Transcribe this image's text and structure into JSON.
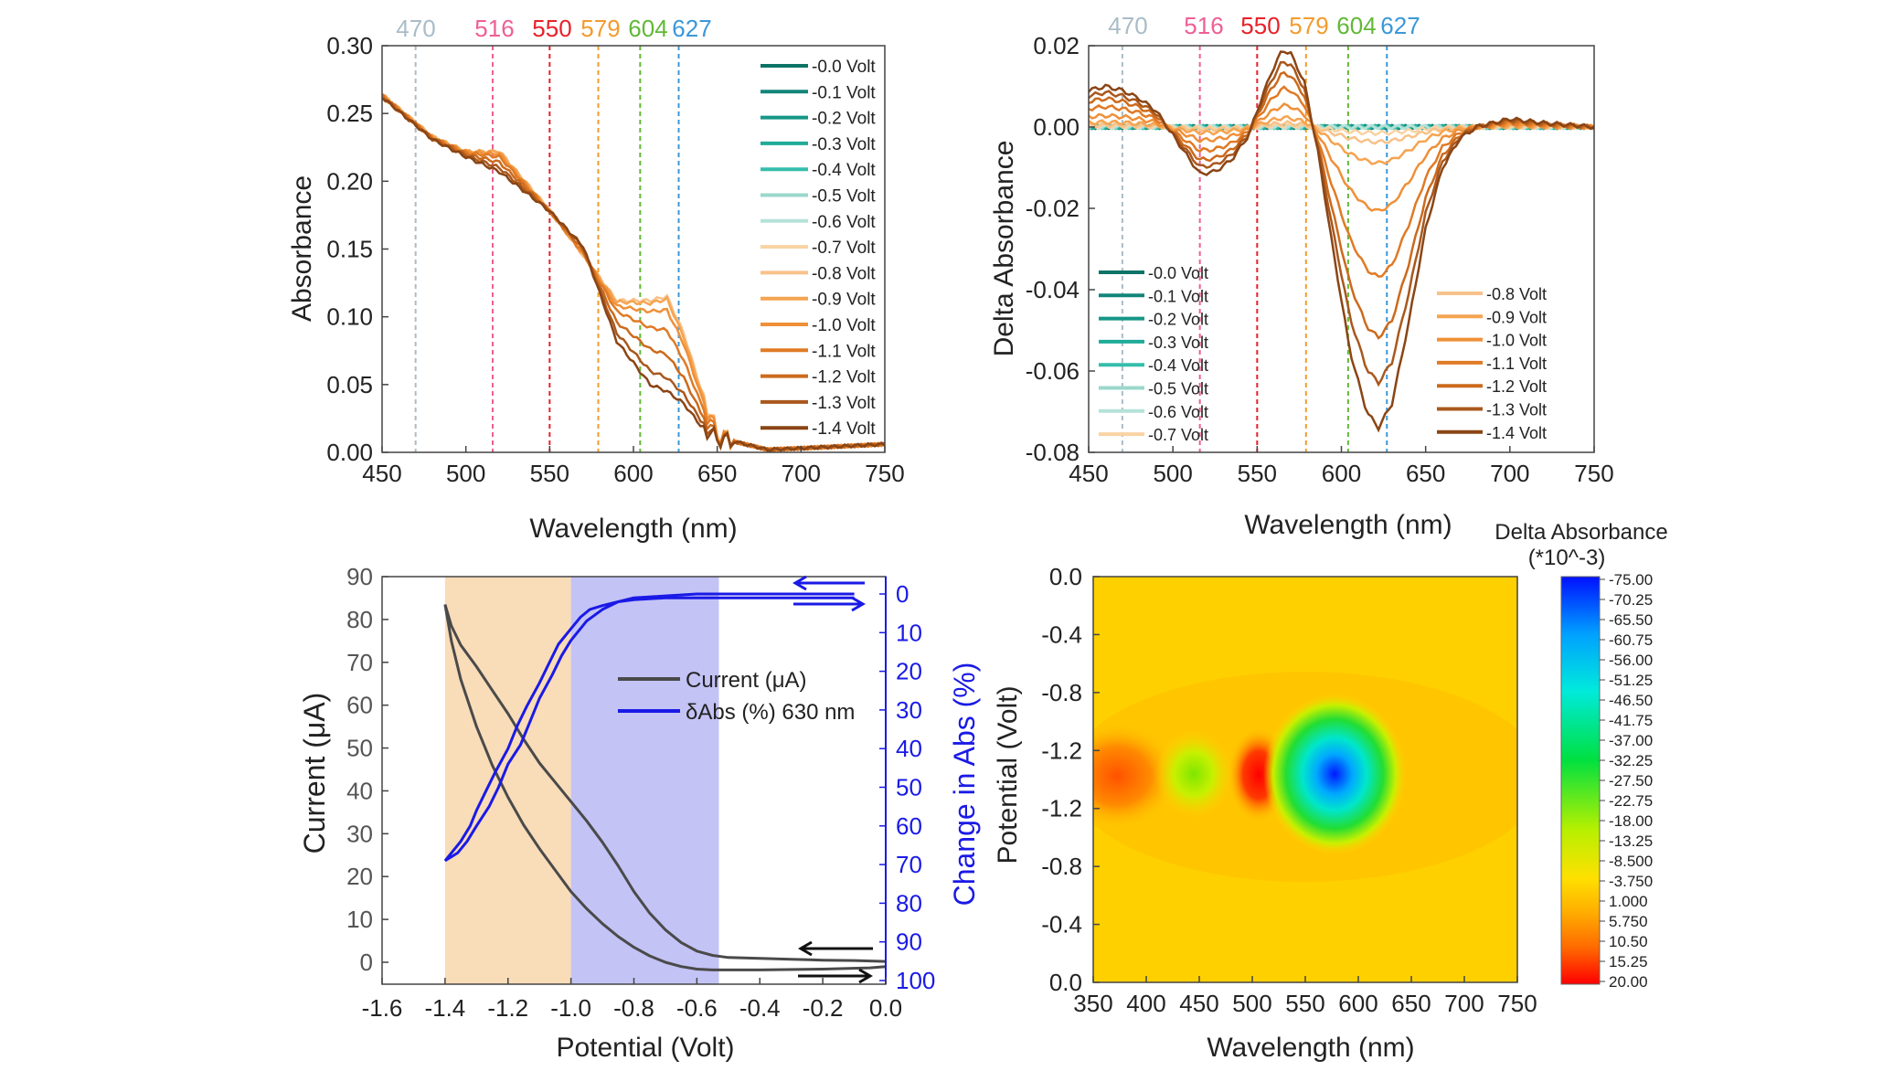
{
  "figure": {
    "panels": [
      "top-left",
      "top-right",
      "bottom-left",
      "bottom-right"
    ]
  },
  "chart_data": [
    {
      "id": "absorbance",
      "type": "line",
      "title": "",
      "xlabel": "Wavelength (nm)",
      "ylabel": "Absorbance",
      "xlim": [
        450,
        750
      ],
      "ylim": [
        0.0,
        0.3
      ],
      "xticks": [
        "450",
        "500",
        "550",
        "600",
        "650",
        "700",
        "750"
      ],
      "yticks": [
        "0.00",
        "0.05",
        "0.10",
        "0.15",
        "0.20",
        "0.25",
        "0.30"
      ],
      "grid": false,
      "legend_position": "top-right",
      "marker_lines": [
        {
          "label": "470",
          "x": 470,
          "color": "#a9bcc8"
        },
        {
          "label": "516",
          "x": 516,
          "color": "#ee5f95"
        },
        {
          "label": "550",
          "x": 550,
          "color": "#e8202a"
        },
        {
          "label": "579",
          "x": 579,
          "color": "#f39b2e"
        },
        {
          "label": "604",
          "x": 604,
          "color": "#62b837"
        },
        {
          "label": "627",
          "x": 627,
          "color": "#3a98d8"
        }
      ],
      "series": [
        {
          "name": "-0.0 Volt",
          "color": "#0d7366",
          "visible": false
        },
        {
          "name": "-0.1 Volt",
          "color": "#13857a",
          "visible": false
        },
        {
          "name": "-0.2 Volt",
          "color": "#169787",
          "visible": false
        },
        {
          "name": "-0.3 Volt",
          "color": "#1fab99",
          "visible": false
        },
        {
          "name": "-0.4 Volt",
          "color": "#35bdab",
          "visible": false
        },
        {
          "name": "-0.5 Volt",
          "color": "#9ad7cb",
          "visible": false
        },
        {
          "name": "-0.6 Volt",
          "color": "#b5e2d8",
          "visible": false
        },
        {
          "name": "-0.7 Volt",
          "color": "#f9d3a3",
          "visible": false
        },
        {
          "name": "-0.8 Volt",
          "color": "#f7c28a",
          "x": [
            450,
            480,
            500,
            520,
            550,
            570,
            590,
            610,
            620,
            630,
            640,
            650,
            660,
            680,
            700,
            750
          ],
          "values": [
            0.264,
            0.233,
            0.221,
            0.222,
            0.179,
            0.145,
            0.112,
            0.112,
            0.115,
            0.088,
            0.048,
            0.014,
            0.008,
            0.002,
            0.003,
            0.006
          ]
        },
        {
          "name": "-0.9 Volt",
          "color": "#f5a450",
          "x": [
            450,
            480,
            500,
            520,
            550,
            570,
            590,
            610,
            620,
            630,
            640,
            650,
            660,
            680,
            700,
            750
          ],
          "values": [
            0.264,
            0.233,
            0.222,
            0.222,
            0.178,
            0.146,
            0.111,
            0.11,
            0.113,
            0.085,
            0.046,
            0.013,
            0.008,
            0.002,
            0.003,
            0.006
          ]
        },
        {
          "name": "-1.0 Volt",
          "color": "#ef9038",
          "x": [
            450,
            480,
            500,
            520,
            550,
            570,
            590,
            610,
            620,
            630,
            640,
            650,
            660,
            680,
            700,
            750
          ],
          "values": [
            0.264,
            0.232,
            0.222,
            0.22,
            0.178,
            0.146,
            0.108,
            0.104,
            0.105,
            0.08,
            0.043,
            0.013,
            0.008,
            0.002,
            0.003,
            0.006
          ]
        },
        {
          "name": "-1.1 Volt",
          "color": "#e07a25",
          "x": [
            450,
            480,
            500,
            520,
            550,
            570,
            590,
            610,
            620,
            630,
            640,
            650,
            660,
            680,
            700,
            750
          ],
          "values": [
            0.263,
            0.232,
            0.221,
            0.218,
            0.178,
            0.147,
            0.104,
            0.092,
            0.09,
            0.068,
            0.037,
            0.012,
            0.008,
            0.002,
            0.003,
            0.006
          ]
        },
        {
          "name": "-1.2 Volt",
          "color": "#cc6a1c",
          "x": [
            450,
            480,
            500,
            520,
            550,
            570,
            590,
            610,
            620,
            630,
            640,
            650,
            660,
            680,
            700,
            750
          ],
          "values": [
            0.263,
            0.232,
            0.22,
            0.214,
            0.178,
            0.149,
            0.096,
            0.076,
            0.072,
            0.055,
            0.03,
            0.011,
            0.008,
            0.002,
            0.003,
            0.006
          ]
        },
        {
          "name": "-1.3 Volt",
          "color": "#a9581d",
          "x": [
            450,
            480,
            500,
            520,
            550,
            570,
            590,
            610,
            620,
            630,
            640,
            650,
            660,
            680,
            700,
            750
          ],
          "values": [
            0.262,
            0.231,
            0.219,
            0.21,
            0.178,
            0.151,
            0.088,
            0.06,
            0.055,
            0.043,
            0.024,
            0.01,
            0.008,
            0.002,
            0.003,
            0.006
          ]
        },
        {
          "name": "-1.4 Volt",
          "color": "#8a4515",
          "x": [
            450,
            480,
            500,
            520,
            550,
            570,
            590,
            610,
            620,
            630,
            640,
            650,
            660,
            680,
            700,
            750
          ],
          "values": [
            0.262,
            0.231,
            0.218,
            0.207,
            0.178,
            0.152,
            0.082,
            0.05,
            0.045,
            0.036,
            0.02,
            0.01,
            0.008,
            0.002,
            0.003,
            0.006
          ]
        }
      ]
    },
    {
      "id": "delta_absorbance",
      "type": "line",
      "title": "",
      "xlabel": "Wavelength (nm)",
      "ylabel": "Delta Absorbance",
      "xlim": [
        450,
        750
      ],
      "ylim": [
        -0.08,
        0.02
      ],
      "xticks": [
        "450",
        "500",
        "550",
        "600",
        "650",
        "700",
        "750"
      ],
      "yticks": [
        "-0.08",
        "-0.06",
        "-0.04",
        "-0.02",
        "0.00",
        "0.02"
      ],
      "grid": false,
      "legend_position": "left and right, two groups",
      "marker_lines": [
        {
          "label": "470",
          "x": 470,
          "color": "#a9bcc8"
        },
        {
          "label": "516",
          "x": 516,
          "color": "#ee5f95"
        },
        {
          "label": "550",
          "x": 550,
          "color": "#e8202a"
        },
        {
          "label": "579",
          "x": 579,
          "color": "#f39b2e"
        },
        {
          "label": "604",
          "x": 604,
          "color": "#62b837"
        },
        {
          "label": "627",
          "x": 627,
          "color": "#3a98d8"
        }
      ],
      "legend_left": [
        "-0.0 Volt",
        "-0.1 Volt",
        "-0.2 Volt",
        "-0.3 Volt",
        "-0.4 Volt",
        "-0.5 Volt",
        "-0.6 Volt",
        "-0.7 Volt"
      ],
      "legend_right": [
        "-0.8 Volt",
        "-0.9 Volt",
        "-1.0 Volt",
        "-1.1 Volt",
        "-1.2 Volt",
        "-1.3 Volt",
        "-1.4 Volt"
      ],
      "series": [
        {
          "name": "-0.0 Volt",
          "color": "#0d7366",
          "amp": 0.0
        },
        {
          "name": "-0.1 Volt",
          "color": "#13857a",
          "amp": 0.0
        },
        {
          "name": "-0.2 Volt",
          "color": "#169787",
          "amp": 0.0
        },
        {
          "name": "-0.3 Volt",
          "color": "#1fab99",
          "amp": 0.0
        },
        {
          "name": "-0.4 Volt",
          "color": "#35bdab",
          "amp": 0.0
        },
        {
          "name": "-0.5 Volt",
          "color": "#9ad7cb",
          "amp": 0.0
        },
        {
          "name": "-0.6 Volt",
          "color": "#b5e2d8",
          "amp": 0.0
        },
        {
          "name": "-0.7 Volt",
          "color": "#f9d3a3",
          "amp": 0.02
        },
        {
          "name": "-0.8 Volt",
          "color": "#f7c28a",
          "amp": 0.05
        },
        {
          "name": "-0.9 Volt",
          "color": "#f5a450",
          "amp": 0.12
        },
        {
          "name": "-1.0 Volt",
          "color": "#ef9038",
          "amp": 0.28
        },
        {
          "name": "-1.1 Volt",
          "color": "#e07a25",
          "amp": 0.5
        },
        {
          "name": "-1.2 Volt",
          "color": "#cc6a1c",
          "amp": 0.7
        },
        {
          "name": "-1.3 Volt",
          "color": "#a9581d",
          "amp": 0.85
        },
        {
          "name": "-1.4 Volt",
          "color": "#8a4515",
          "amp": 1.0
        }
      ],
      "profile_x": [
        450,
        460,
        470,
        480,
        490,
        500,
        510,
        516,
        525,
        535,
        545,
        550,
        558,
        565,
        570,
        578,
        586,
        595,
        605,
        615,
        622,
        630,
        640,
        650,
        660,
        670,
        680,
        700,
        720,
        750
      ],
      "profile_values": [
        0.009,
        0.01,
        0.009,
        0.007,
        0.004,
        -0.002,
        -0.008,
        -0.0115,
        -0.011,
        -0.008,
        -0.002,
        0.004,
        0.013,
        0.019,
        0.018,
        0.011,
        -0.006,
        -0.03,
        -0.055,
        -0.07,
        -0.074,
        -0.068,
        -0.048,
        -0.025,
        -0.01,
        -0.003,
        0.0,
        0.002,
        0.001,
        0.0
      ]
    },
    {
      "id": "current_vs_potential",
      "type": "line",
      "title": "",
      "xlabel": "Potential (Volt)",
      "ylabel": "Current (μA)",
      "y2label": "Change in Abs (%)",
      "xlim": [
        -1.6,
        0.0
      ],
      "ylim": [
        -5,
        90
      ],
      "y2lim": [
        0,
        100
      ],
      "y2_inverted": true,
      "xticks": [
        "-1.6",
        "-1.4",
        "-1.2",
        "-1.0",
        "-0.8",
        "-0.6",
        "-0.4",
        "-0.2",
        "0.0"
      ],
      "yticks": [
        "0",
        "10",
        "20",
        "30",
        "40",
        "50",
        "60",
        "70",
        "80",
        "90"
      ],
      "y2ticks": [
        "0",
        "10",
        "20",
        "30",
        "40",
        "50",
        "60",
        "70",
        "80",
        "90",
        "100"
      ],
      "legend_position": "center",
      "shaded_regions": [
        {
          "from": -1.4,
          "to": -1.0,
          "color": "#f9dcb8"
        },
        {
          "from": -1.0,
          "to": -0.53,
          "color": "#c3c3f6"
        }
      ],
      "series": [
        {
          "name": "Current (μA)",
          "color": "#4a4a4a",
          "axis": "left",
          "x": [
            0.0,
            -0.1,
            -0.2,
            -0.3,
            -0.4,
            -0.5,
            -0.55,
            -0.6,
            -0.65,
            -0.7,
            -0.75,
            -0.8,
            -0.85,
            -0.9,
            -0.95,
            -1.0,
            -1.05,
            -1.1,
            -1.15,
            -1.2,
            -1.25,
            -1.3,
            -1.35,
            -1.38,
            -1.4
          ],
          "values": [
            0.2,
            0.4,
            0.5,
            0.7,
            0.9,
            1.1,
            1.6,
            2.6,
            4.6,
            7.6,
            11.5,
            16.5,
            22.5,
            28.0,
            33.0,
            37.5,
            42.0,
            46.5,
            52.0,
            58.0,
            63.5,
            69.0,
            74.0,
            78.5,
            83.5
          ]
        },
        {
          "name": "",
          "color": "#4a4a4a",
          "axis": "left",
          "x": [
            -1.4,
            -1.38,
            -1.35,
            -1.3,
            -1.25,
            -1.2,
            -1.15,
            -1.1,
            -1.05,
            -1.0,
            -0.95,
            -0.9,
            -0.85,
            -0.8,
            -0.75,
            -0.7,
            -0.65,
            -0.6,
            -0.55,
            -0.5,
            -0.4,
            -0.2,
            -0.05,
            0.0
          ],
          "values": [
            83.5,
            75.0,
            66.0,
            55.0,
            46.0,
            38.5,
            32.0,
            26.5,
            21.5,
            16.5,
            12.5,
            9.0,
            6.0,
            3.5,
            1.5,
            0.0,
            -1.0,
            -1.6,
            -1.8,
            -1.8,
            -1.8,
            -1.6,
            -1.3,
            -1.0
          ]
        },
        {
          "name": "δAbs (%) 630 nm",
          "color": "#1a1ae6",
          "axis": "right",
          "x": [
            -1.4,
            -1.38,
            -1.35,
            -1.32,
            -1.3,
            -1.27,
            -1.24,
            -1.2,
            -1.17,
            -1.14,
            -1.1,
            -1.07,
            -1.04,
            -1.0,
            -0.97,
            -0.94,
            -0.9,
            -0.85,
            -0.8,
            -0.7,
            -0.6,
            -0.5,
            -0.3,
            -0.1
          ],
          "values": [
            69,
            67,
            64,
            60,
            56,
            51,
            46,
            40,
            34,
            29,
            23,
            18,
            13,
            9,
            6,
            4,
            3,
            2,
            1.5,
            1,
            1,
            1,
            1,
            1
          ]
        },
        {
          "name": "",
          "color": "#1a1ae6",
          "axis": "right",
          "x": [
            -0.1,
            -0.3,
            -0.5,
            -0.6,
            -0.7,
            -0.8,
            -0.85,
            -0.9,
            -0.95,
            -1.0,
            -1.03,
            -1.06,
            -1.1,
            -1.13,
            -1.16,
            -1.2,
            -1.23,
            -1.26,
            -1.3,
            -1.33,
            -1.36,
            -1.38,
            -1.4
          ],
          "values": [
            0,
            0,
            0,
            0,
            0.5,
            1,
            2,
            4,
            7,
            12,
            16,
            21,
            27,
            33,
            39,
            44,
            50,
            55,
            60,
            64,
            67,
            68,
            69
          ]
        }
      ]
    },
    {
      "id": "heatmap",
      "type": "heatmap",
      "title": "",
      "xlabel": "Wavelength (nm)",
      "ylabel": "Potential (Volt)",
      "xlim": [
        350,
        750
      ],
      "xticks": [
        "350",
        "400",
        "450",
        "500",
        "550",
        "600",
        "650",
        "700",
        "750"
      ],
      "yticks_top_to_bottom": [
        "0.0",
        "-0.4",
        "-0.8",
        "-1.2",
        "-1.2",
        "-0.8",
        "-0.4",
        "0.0"
      ],
      "colorbar_title_line1": "Delta Absorbance",
      "colorbar_title_line2": "(*10^-3)",
      "colorbar_ticks": [
        "-75.00",
        "-70.25",
        "-65.50",
        "-60.75",
        "-56.00",
        "-51.25",
        "-46.50",
        "-41.75",
        "-37.00",
        "-32.25",
        "-27.50",
        "-22.75",
        "-18.00",
        "-13.25",
        "-8.500",
        "-3.750",
        "1.000",
        "5.750",
        "10.50",
        "15.25",
        "20.00"
      ],
      "features": [
        {
          "x": 370,
          "y_frac": 0.49,
          "value": 14,
          "rx": 40,
          "ry": 0.12
        },
        {
          "x": 440,
          "y_frac": 0.49,
          "value": -12,
          "rx": 28,
          "ry": 0.1
        },
        {
          "x": 505,
          "y_frac": 0.49,
          "value": 20,
          "rx": 20,
          "ry": 0.12
        },
        {
          "x": 578,
          "y_frac": 0.49,
          "value": -75,
          "rx": 55,
          "ry": 0.18
        }
      ]
    }
  ]
}
